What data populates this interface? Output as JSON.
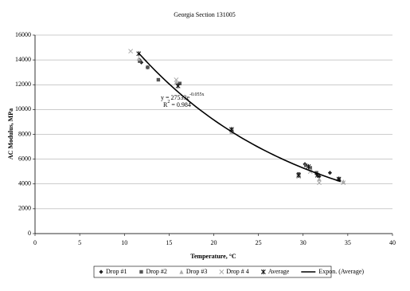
{
  "chart_data": {
    "type": "scatter",
    "title": "Georgia Section 131005",
    "x_label": "Temperature, °C",
    "y_label": "AC Modulus, MPa",
    "xlim": [
      0,
      40
    ],
    "xticks": [
      0,
      5,
      10,
      15,
      20,
      25,
      30,
      35,
      40
    ],
    "ylim": [
      0,
      16000
    ],
    "yticks": [
      0,
      2000,
      4000,
      6000,
      8000,
      10000,
      12000,
      14000,
      16000
    ],
    "grid": true,
    "legend": "bottom",
    "series": [
      {
        "name": "Drop #1",
        "marker": "diamond",
        "color": "#222",
        "x": [
          11.7,
          11.9,
          12.6,
          16.0,
          22.0,
          29.5,
          30.2,
          31.5,
          31.8,
          33.0,
          34.0
        ],
        "values": [
          14000,
          13800,
          13400,
          12000,
          8400,
          4700,
          5600,
          4800,
          4600,
          4900,
          4400
        ]
      },
      {
        "name": "Drop #2",
        "marker": "square",
        "color": "#555",
        "x": [
          11.7,
          12.6,
          13.8,
          16.2,
          22.0,
          29.5,
          30.3,
          30.8,
          31.5,
          34.0
        ],
        "values": [
          13900,
          13400,
          12400,
          12100,
          8300,
          4800,
          5500,
          5300,
          4900,
          4400
        ]
      },
      {
        "name": "Drop #3",
        "marker": "triangle",
        "color": "#aaa",
        "x": [
          11.6,
          15.8,
          22.0,
          29.5,
          30.8,
          31.8,
          34.5
        ],
        "values": [
          14100,
          12200,
          8200,
          4700,
          5200,
          4400,
          4200
        ]
      },
      {
        "name": "Drop # 4",
        "marker": "cross",
        "color": "#aaa",
        "x": [
          10.7,
          15.8,
          22.0,
          29.5,
          30.8,
          31.8,
          34.5
        ],
        "values": [
          14700,
          12400,
          8300,
          4600,
          5000,
          4100,
          4100
        ]
      },
      {
        "name": "Average",
        "marker": "asterisk",
        "color": "#111",
        "x": [
          11.6,
          16.0,
          22.0,
          29.5,
          30.6,
          31.6,
          34.0
        ],
        "values": [
          14500,
          11900,
          8400,
          4700,
          5400,
          4700,
          4400
        ]
      }
    ],
    "trendline": {
      "name": "Expon. (Average)",
      "color": "#000",
      "coefficient": 27533,
      "exponent": -0.055,
      "x_range": [
        11.6,
        34.2
      ]
    },
    "annotation": {
      "equation": "y = 27533e",
      "equation_power": "-0.055x",
      "r2_symbol": "R",
      "r2_power": "2",
      "r2_value": " = 0.984"
    }
  }
}
